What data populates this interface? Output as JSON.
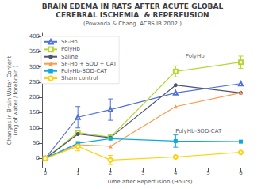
{
  "chart_data": {
    "type": "line",
    "title": "BRAIN EDEMA IN RATS AFTER ACUTE GLOBAL\nCEREBRAL ISCHEMIA  & REPERFUSION",
    "subtitle": "(Powanda & Chang  ACBS IB 2002 )",
    "xlabel": "Time after Reperfusion (Hours)",
    "ylabel": "Changes in Brain Water Content\n(mg of water / forebrain )",
    "x": [
      0,
      1,
      2,
      4,
      6
    ],
    "series": [
      {
        "name": "SF-Hb",
        "values": [
          0,
          135,
          160,
          215,
          245
        ],
        "errors": [
          0,
          35,
          35,
          0,
          0
        ],
        "marker": "triangle-open"
      },
      {
        "name": "PolyHb",
        "values": [
          0,
          85,
          70,
          285,
          315
        ],
        "errors": [
          0,
          0,
          0,
          18,
          20
        ],
        "marker": "square-open"
      },
      {
        "name": "Saline",
        "values": [
          0,
          80,
          68,
          240,
          215
        ],
        "errors": [
          0,
          0,
          0,
          0,
          0
        ],
        "marker": "circle"
      },
      {
        "name": "SF-Hb + SOD + CAT",
        "values": [
          0,
          45,
          40,
          170,
          215
        ],
        "errors": [
          0,
          0,
          0,
          0,
          0
        ],
        "marker": "triangle"
      },
      {
        "name": "PolyHb-SOD-CAT",
        "values": [
          0,
          50,
          65,
          57,
          55
        ],
        "errors": [
          0,
          0,
          0,
          20,
          0
        ],
        "marker": "square"
      },
      {
        "name": "Sham control",
        "values": [
          0,
          40,
          -5,
          5,
          20
        ],
        "errors": [
          0,
          15,
          15,
          0,
          0
        ],
        "marker": "circle-open"
      }
    ],
    "xlim": [
      -0.1,
      6.5
    ],
    "ylim": [
      -30,
      410
    ],
    "xticks": [
      0,
      1,
      2,
      3,
      4,
      5,
      6
    ],
    "yticks": [
      0,
      50,
      100,
      150,
      200,
      250,
      300,
      350,
      400
    ],
    "grid": false,
    "legend": "upper left",
    "annotations": [
      {
        "text": "PolyHb",
        "x": 4.3,
        "y": 335
      },
      {
        "text": "PolyHb-SOD-CAT",
        "x": 4.0,
        "y": 88
      }
    ]
  }
}
